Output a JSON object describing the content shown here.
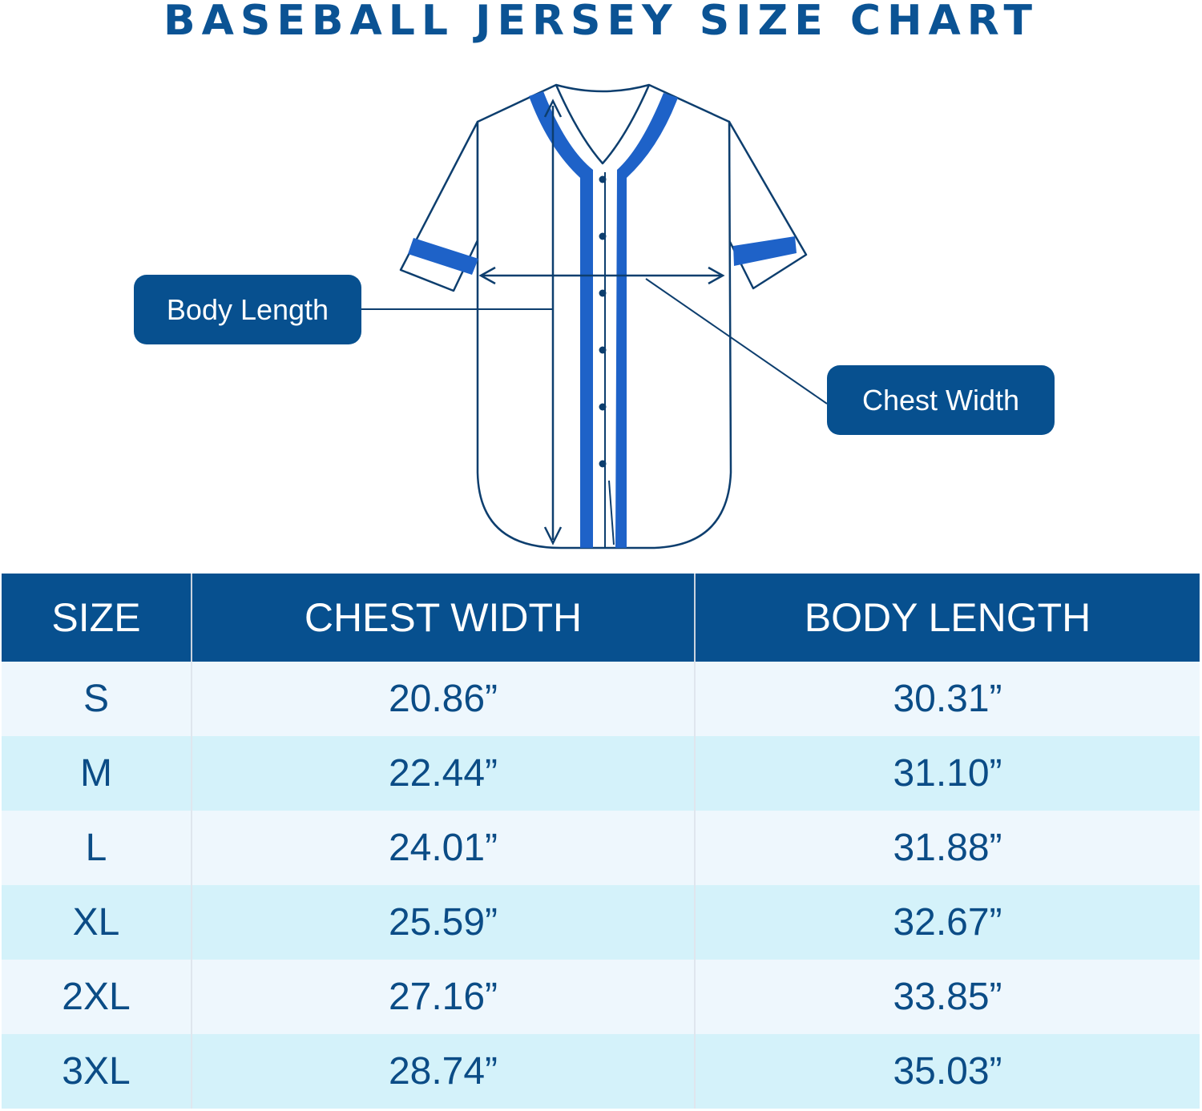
{
  "title": "BASEBALL JERSEY SIZE CHART",
  "callouts": {
    "body_length": "Body Length",
    "chest_width": "Chest Width"
  },
  "colors": {
    "navy": "#07508F",
    "accent_blue": "#1E62C8",
    "row_light": "#EEF7FD",
    "row_cyan": "#D4F2FA"
  },
  "table": {
    "headers": [
      "SIZE",
      "CHEST WIDTH",
      "BODY LENGTH"
    ],
    "rows": [
      [
        "S",
        "20.86”",
        "30.31”"
      ],
      [
        "M",
        "22.44”",
        "31.10”"
      ],
      [
        "L",
        "24.01”",
        "31.88”"
      ],
      [
        "XL",
        "25.59”",
        "32.67”"
      ],
      [
        "2XL",
        "27.16”",
        "33.85”"
      ],
      [
        "3XL",
        "28.74”",
        "35.03”"
      ]
    ]
  }
}
